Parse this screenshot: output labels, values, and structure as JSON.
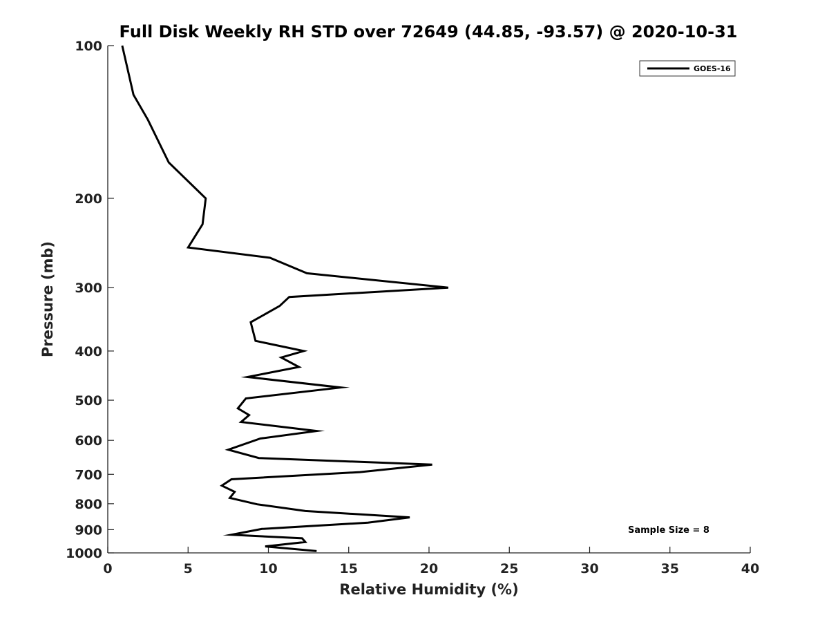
{
  "chart_data": {
    "type": "line",
    "title": "Full Disk Weekly RH STD over 72649 (44.85, -93.57) @ 2020-10-31",
    "xlabel": "Relative Humidity (%)",
    "ylabel": "Pressure (mb)",
    "xlim": [
      0,
      40
    ],
    "ylim": [
      100,
      1000
    ],
    "yscale": "log",
    "y_reversed": true,
    "grid": false,
    "xticks": [
      0,
      5,
      10,
      15,
      20,
      25,
      30,
      35,
      40
    ],
    "xtick_labels": [
      "0",
      "5",
      "10",
      "15",
      "20",
      "25",
      "30",
      "35",
      "40"
    ],
    "yticks": [
      100,
      200,
      300,
      400,
      500,
      600,
      700,
      800,
      900,
      1000
    ],
    "ytick_labels": [
      "100",
      "200",
      "300",
      "400",
      "500",
      "600",
      "700",
      "800",
      "900",
      "1000"
    ],
    "legend": {
      "position": "top-right",
      "entries": [
        "GOES-16"
      ]
    },
    "annotation": "Sample Size = 8",
    "series": [
      {
        "name": "GOES-16",
        "color": "#000000",
        "x": [
          0.9,
          1.2,
          1.6,
          2.5,
          3.8,
          6.1,
          5.9,
          5.0,
          10.1,
          12.4,
          21.2,
          11.3,
          10.7,
          8.9,
          9.2,
          12.2,
          10.8,
          11.9,
          8.7,
          14.5,
          8.6,
          8.1,
          8.8,
          8.3,
          13.0,
          9.5,
          7.5,
          9.4,
          20.2,
          15.7,
          7.7,
          7.1,
          7.9,
          7.6,
          9.3,
          12.3,
          18.8,
          16.2,
          9.6,
          7.7,
          12.1,
          12.3,
          9.8,
          13.0
        ],
        "y": [
          100,
          110,
          125,
          140,
          170,
          200,
          225,
          250,
          262,
          281,
          300,
          313,
          326,
          351,
          382,
          400,
          412,
          430,
          450,
          472,
          496,
          519,
          535,
          552,
          575,
          595,
          626,
          650,
          670,
          693,
          716,
          737,
          758,
          779,
          802,
          827,
          851,
          872,
          897,
          921,
          936,
          952,
          971,
          992
        ]
      }
    ]
  }
}
